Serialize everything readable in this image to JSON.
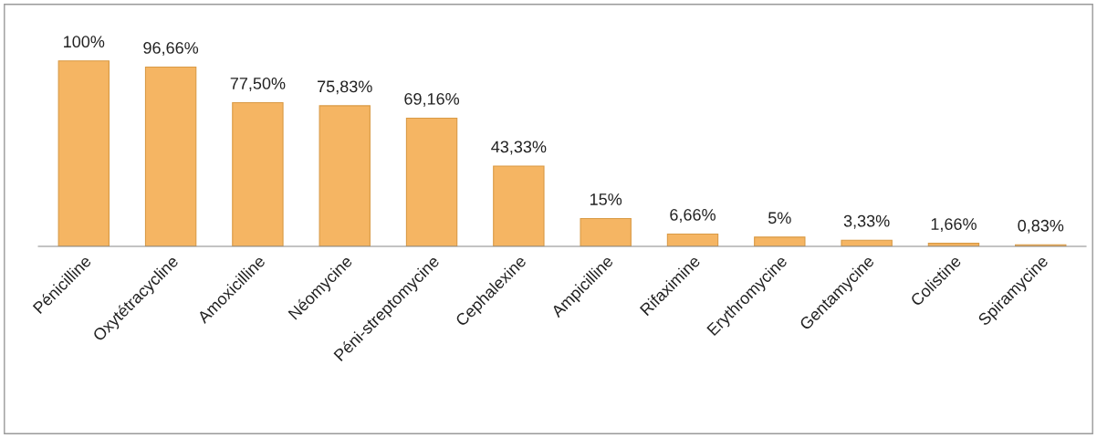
{
  "chart_data": {
    "type": "bar",
    "categories": [
      "Pénicilline",
      "Oxytétracycline",
      "Amoxicilline",
      "Néomycine",
      "Péni-streptomycine",
      "Cephalexine",
      "Ampicilline",
      "Rifaximine",
      "Erythromycine",
      "Gentamycine",
      "Colistine",
      "Spiramycine"
    ],
    "values": [
      100,
      96.66,
      77.5,
      75.83,
      69.16,
      43.33,
      15,
      6.66,
      5,
      3.33,
      1.66,
      0.83
    ],
    "value_labels": [
      "100%",
      "96,66%",
      "77,50%",
      "75,83%",
      "69,16%",
      "43,33%",
      "15%",
      "6,66%",
      "5%",
      "3,33%",
      "1,66%",
      "0,83%"
    ],
    "color": "#f5b563",
    "grid": false,
    "legend": false
  }
}
